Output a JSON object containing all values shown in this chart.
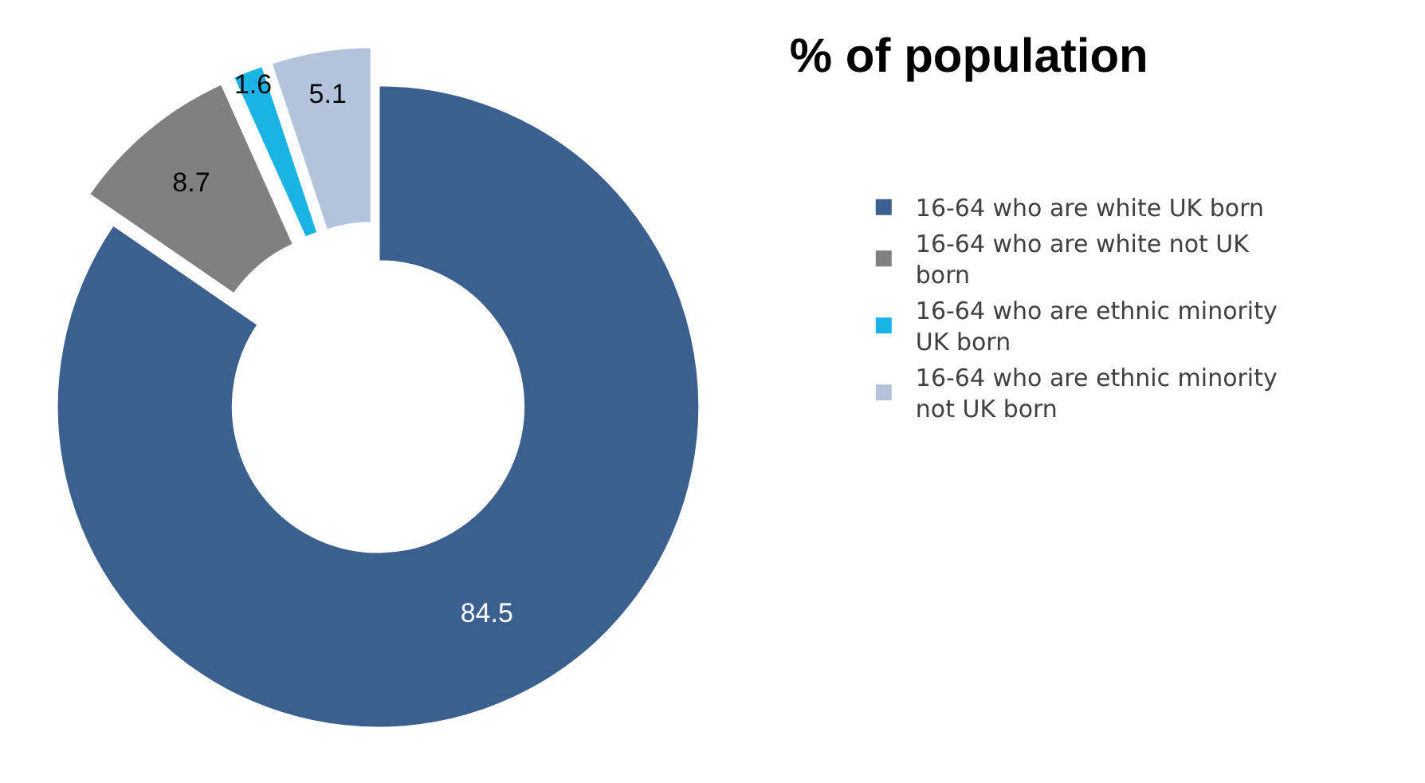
{
  "chart_data": {
    "type": "donut",
    "title": "% of population",
    "categories": [
      "16-64 who are white UK born",
      "16-64 who are white not UK born",
      "16-64 who are ethnic minority UK born",
      "16-64 who are ethnic minority not UK born"
    ],
    "values": [
      84.5,
      8.7,
      1.6,
      5.1
    ],
    "colors": [
      "#3b5f8f",
      "#808080",
      "#19b3e6",
      "#b4c3dc"
    ],
    "data_labels": true,
    "legend": "right"
  }
}
